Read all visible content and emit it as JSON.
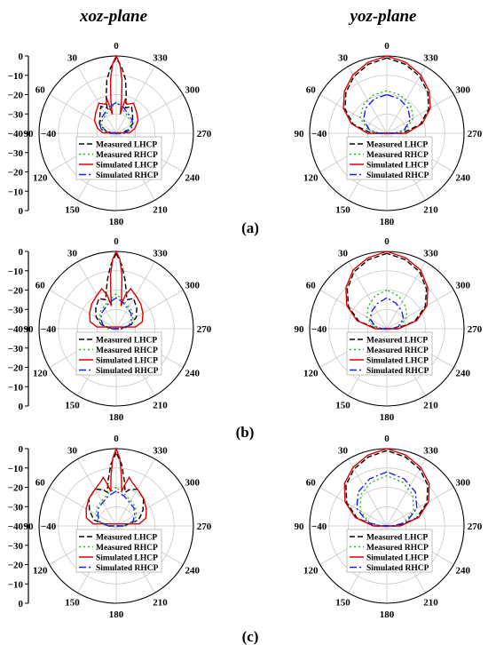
{
  "titles": {
    "left": "xoz-plane",
    "right": "yoz-plane"
  },
  "panel_labels": [
    "(a)",
    "(b)",
    "(c)"
  ],
  "angle_labels": [
    "0",
    "30",
    "60",
    "90",
    "120",
    "150",
    "180",
    "210",
    "240",
    "270",
    "300",
    "330"
  ],
  "radial_ticks": [
    "0",
    "−10",
    "−20",
    "−30",
    "−40",
    "−30",
    "−20",
    "−10",
    "0"
  ],
  "legend": [
    {
      "label": "Measured LHCP",
      "color": "#000000",
      "dash": "6,3"
    },
    {
      "label": "Measured RHCP",
      "color": "#22bb22",
      "dash": "2,3"
    },
    {
      "label": "Simulated LHCP",
      "color": "#dd0000",
      "dash": ""
    },
    {
      "label": "Simulated RHCP",
      "color": "#1a1aff",
      "dash": "8,3,2,3"
    }
  ],
  "colors": {
    "grid": "#c8c8c8",
    "axis": "#000000"
  },
  "chart_data": [
    {
      "type": "polar",
      "plane": "xoz",
      "panel": "(a)",
      "r_range_db": [
        -40,
        0
      ],
      "series": [
        {
          "name": "Measured LHCP",
          "theta_deg": [
            0,
            5,
            10,
            15,
            20,
            30,
            45,
            60,
            75,
            90,
            270,
            285,
            300,
            315,
            330,
            340,
            345,
            350,
            355
          ],
          "gain_db": [
            -1,
            -6,
            -12,
            -20,
            -26,
            -24,
            -28,
            -30,
            -34,
            -38,
            -38,
            -34,
            -30,
            -28,
            -24,
            -26,
            -20,
            -12,
            -6
          ]
        },
        {
          "name": "Measured RHCP",
          "theta_deg": [
            0,
            15,
            30,
            45,
            60,
            75,
            90,
            270,
            285,
            300,
            315,
            330,
            345
          ],
          "gain_db": [
            -24,
            -27,
            -29,
            -30,
            -31,
            -34,
            -37,
            -37,
            -34,
            -31,
            -30,
            -29,
            -27
          ]
        },
        {
          "name": "Simulated LHCP",
          "theta_deg": [
            0,
            3,
            6,
            9,
            12,
            15,
            20,
            30,
            45,
            60,
            75,
            88,
            272,
            285,
            300,
            315,
            330,
            340,
            345,
            348,
            351,
            354,
            357
          ],
          "gain_db": [
            0,
            -4,
            -12,
            -22,
            -30,
            -22,
            -24,
            -22,
            -25,
            -27,
            -30,
            -33,
            -33,
            -30,
            -27,
            -25,
            -22,
            -24,
            -22,
            -30,
            -22,
            -12,
            -4
          ]
        },
        {
          "name": "Simulated RHCP",
          "theta_deg": [
            0,
            15,
            30,
            45,
            60,
            75,
            90,
            270,
            285,
            300,
            315,
            330,
            345
          ],
          "gain_db": [
            -24,
            -26,
            -28,
            -29,
            -30,
            -32,
            -36,
            -36,
            -32,
            -30,
            -29,
            -28,
            -26
          ]
        }
      ]
    },
    {
      "type": "polar",
      "plane": "yoz",
      "panel": "(a)",
      "r_range_db": [
        -40,
        0
      ],
      "series": [
        {
          "name": "Measured LHCP",
          "theta_deg": [
            0,
            15,
            30,
            45,
            60,
            75,
            90,
            270,
            285,
            300,
            315,
            330,
            345
          ],
          "gain_db": [
            -1,
            -3,
            -6,
            -10,
            -15,
            -22,
            -32,
            -32,
            -22,
            -15,
            -10,
            -6,
            -3
          ]
        },
        {
          "name": "Measured RHCP",
          "theta_deg": [
            0,
            20,
            40,
            60,
            80,
            90,
            270,
            280,
            300,
            320,
            340
          ],
          "gain_db": [
            -18,
            -19,
            -21,
            -24,
            -30,
            -36,
            -36,
            -30,
            -24,
            -21,
            -19
          ]
        },
        {
          "name": "Simulated LHCP",
          "theta_deg": [
            0,
            15,
            30,
            45,
            60,
            75,
            90,
            270,
            285,
            300,
            315,
            330,
            345
          ],
          "gain_db": [
            0,
            -2,
            -5,
            -9,
            -14,
            -21,
            -30,
            -30,
            -21,
            -14,
            -9,
            -5,
            -2
          ]
        },
        {
          "name": "Simulated RHCP",
          "theta_deg": [
            0,
            20,
            40,
            60,
            80,
            90,
            270,
            280,
            300,
            320,
            340
          ],
          "gain_db": [
            -20,
            -21,
            -23,
            -26,
            -31,
            -36,
            -36,
            -31,
            -26,
            -23,
            -21
          ]
        }
      ]
    },
    {
      "type": "polar",
      "plane": "xoz",
      "panel": "(b)",
      "r_range_db": [
        -40,
        0
      ],
      "series": [
        {
          "name": "Measured LHCP",
          "theta_deg": [
            0,
            5,
            10,
            15,
            20,
            30,
            45,
            60,
            75,
            90,
            270,
            285,
            300,
            315,
            330,
            340,
            345,
            350,
            355
          ],
          "gain_db": [
            -1,
            -7,
            -14,
            -20,
            -24,
            -22,
            -25,
            -28,
            -32,
            -38,
            -38,
            -32,
            -28,
            -25,
            -22,
            -24,
            -20,
            -14,
            -7
          ]
        },
        {
          "name": "Measured RHCP",
          "theta_deg": [
            0,
            15,
            30,
            45,
            60,
            75,
            90,
            270,
            285,
            300,
            315,
            330,
            345
          ],
          "gain_db": [
            -22,
            -25,
            -27,
            -28,
            -30,
            -32,
            -36,
            -36,
            -32,
            -30,
            -28,
            -27,
            -25
          ]
        },
        {
          "name": "Simulated LHCP",
          "theta_deg": [
            0,
            3,
            6,
            9,
            12,
            15,
            20,
            30,
            45,
            60,
            75,
            85,
            275,
            285,
            300,
            315,
            330,
            340,
            345,
            348,
            351,
            354,
            357
          ],
          "gain_db": [
            0,
            -4,
            -12,
            -22,
            -28,
            -22,
            -18,
            -20,
            -22,
            -24,
            -26,
            -30,
            -30,
            -26,
            -24,
            -22,
            -20,
            -18,
            -22,
            -28,
            -22,
            -12,
            -4
          ]
        },
        {
          "name": "Simulated RHCP",
          "theta_deg": [
            0,
            15,
            30,
            45,
            60,
            75,
            90,
            270,
            285,
            300,
            315,
            330,
            345
          ],
          "gain_db": [
            -24,
            -26,
            -28,
            -29,
            -31,
            -33,
            -37,
            -37,
            -33,
            -31,
            -29,
            -28,
            -26
          ]
        }
      ]
    },
    {
      "type": "polar",
      "plane": "yoz",
      "panel": "(b)",
      "r_range_db": [
        -40,
        0
      ],
      "series": [
        {
          "name": "Measured LHCP",
          "theta_deg": [
            0,
            15,
            30,
            45,
            60,
            75,
            90,
            270,
            285,
            300,
            315,
            330,
            345
          ],
          "gain_db": [
            -1,
            -3,
            -6,
            -11,
            -17,
            -25,
            -35,
            -35,
            -25,
            -17,
            -11,
            -6,
            -3
          ]
        },
        {
          "name": "Measured RHCP",
          "theta_deg": [
            0,
            20,
            40,
            60,
            80,
            90,
            270,
            280,
            300,
            320,
            340
          ],
          "gain_db": [
            -20,
            -22,
            -25,
            -28,
            -33,
            -38,
            -38,
            -33,
            -28,
            -25,
            -22
          ]
        },
        {
          "name": "Simulated LHCP",
          "theta_deg": [
            0,
            15,
            30,
            45,
            60,
            75,
            90,
            270,
            285,
            300,
            315,
            330,
            345
          ],
          "gain_db": [
            0,
            -2,
            -5,
            -10,
            -16,
            -24,
            -34,
            -34,
            -24,
            -16,
            -10,
            -5,
            -2
          ]
        },
        {
          "name": "Simulated RHCP",
          "theta_deg": [
            0,
            20,
            40,
            60,
            80,
            90,
            270,
            280,
            300,
            320,
            340
          ],
          "gain_db": [
            -24,
            -26,
            -28,
            -30,
            -34,
            -38,
            -38,
            -34,
            -30,
            -28,
            -26
          ]
        }
      ]
    },
    {
      "type": "polar",
      "plane": "xoz",
      "panel": "(c)",
      "r_range_db": [
        -40,
        0
      ],
      "series": [
        {
          "name": "Measured LHCP",
          "theta_deg": [
            0,
            5,
            10,
            15,
            20,
            30,
            45,
            60,
            75,
            90,
            270,
            285,
            300,
            315,
            330,
            340,
            345,
            350,
            355
          ],
          "gain_db": [
            -2,
            -8,
            -16,
            -22,
            -20,
            -18,
            -20,
            -24,
            -28,
            -36,
            -36,
            -28,
            -24,
            -20,
            -18,
            -20,
            -22,
            -16,
            -8
          ]
        },
        {
          "name": "Measured RHCP",
          "theta_deg": [
            0,
            15,
            30,
            45,
            60,
            75,
            90,
            270,
            285,
            300,
            315,
            330,
            345
          ],
          "gain_db": [
            -20,
            -23,
            -25,
            -26,
            -28,
            -30,
            -35,
            -35,
            -30,
            -28,
            -26,
            -25,
            -23
          ]
        },
        {
          "name": "Simulated LHCP",
          "theta_deg": [
            0,
            3,
            6,
            9,
            12,
            15,
            20,
            30,
            45,
            60,
            75,
            85,
            275,
            285,
            300,
            315,
            330,
            340,
            345,
            348,
            351,
            354,
            357
          ],
          "gain_db": [
            0,
            -5,
            -14,
            -22,
            -18,
            -14,
            -16,
            -18,
            -20,
            -22,
            -24,
            -28,
            -28,
            -24,
            -22,
            -20,
            -18,
            -16,
            -14,
            -18,
            -22,
            -14,
            -5
          ]
        },
        {
          "name": "Simulated RHCP",
          "theta_deg": [
            0,
            15,
            30,
            45,
            60,
            75,
            90,
            270,
            285,
            300,
            315,
            330,
            345
          ],
          "gain_db": [
            -22,
            -24,
            -26,
            -27,
            -29,
            -31,
            -36,
            -36,
            -31,
            -29,
            -27,
            -26,
            -24
          ]
        }
      ]
    },
    {
      "type": "polar",
      "plane": "yoz",
      "panel": "(c)",
      "r_range_db": [
        -40,
        0
      ],
      "series": [
        {
          "name": "Measured LHCP",
          "theta_deg": [
            0,
            15,
            30,
            45,
            60,
            75,
            90,
            270,
            285,
            300,
            315,
            330,
            345
          ],
          "gain_db": [
            -1,
            -3,
            -6,
            -10,
            -16,
            -24,
            -34,
            -34,
            -24,
            -16,
            -10,
            -6,
            -3
          ]
        },
        {
          "name": "Measured RHCP",
          "theta_deg": [
            0,
            20,
            40,
            60,
            80,
            90,
            270,
            280,
            300,
            320,
            340
          ],
          "gain_db": [
            -14,
            -16,
            -19,
            -24,
            -31,
            -37,
            -37,
            -31,
            -24,
            -19,
            -16
          ]
        },
        {
          "name": "Simulated LHCP",
          "theta_deg": [
            0,
            15,
            30,
            45,
            60,
            75,
            90,
            270,
            285,
            300,
            315,
            330,
            345
          ],
          "gain_db": [
            0,
            -2,
            -5,
            -9,
            -15,
            -23,
            -33,
            -33,
            -23,
            -15,
            -9,
            -5,
            -2
          ]
        },
        {
          "name": "Simulated RHCP",
          "theta_deg": [
            0,
            20,
            40,
            60,
            80,
            90,
            270,
            280,
            300,
            320,
            340
          ],
          "gain_db": [
            -12,
            -14,
            -17,
            -22,
            -30,
            -37,
            -37,
            -30,
            -22,
            -17,
            -14
          ]
        }
      ]
    }
  ]
}
